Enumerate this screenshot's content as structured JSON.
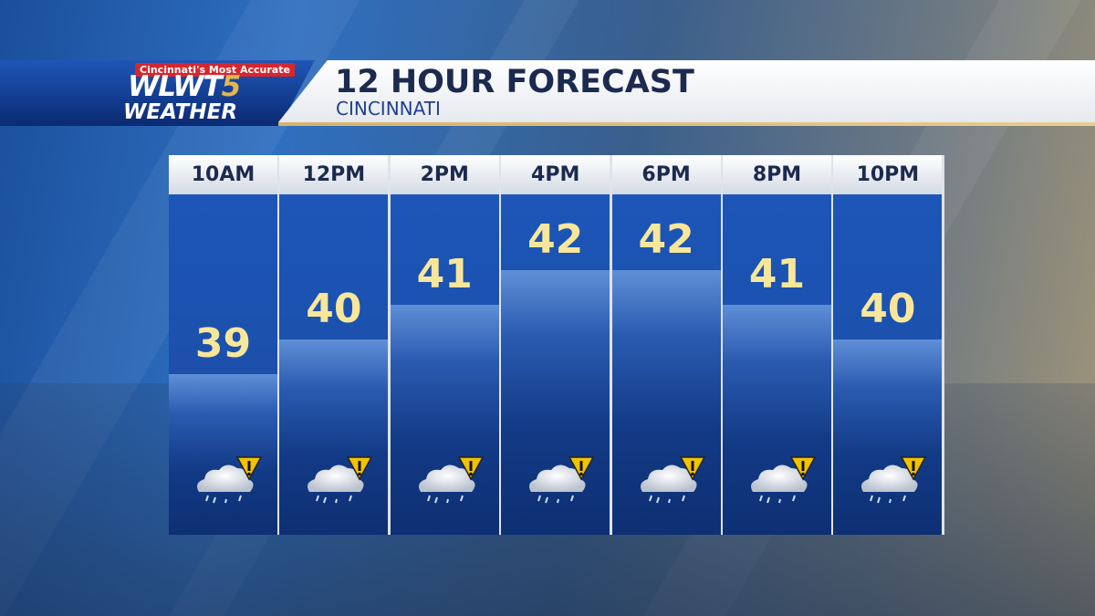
{
  "brand": {
    "tagline": "Cincinnati's Most Accurate",
    "station": "WLWT",
    "channel": "5",
    "product": "WEATHER"
  },
  "header": {
    "title": "12 HOUR FORECAST",
    "location": "CINCINNATI"
  },
  "colors": {
    "value_text": "#f8e79a",
    "bar_blue": "#1a4aa0",
    "warning_yellow": "#f2c200",
    "logo_red": "#d8262d"
  },
  "chart_data": {
    "type": "bar",
    "categories": [
      "10AM",
      "12PM",
      "2PM",
      "4PM",
      "6PM",
      "8PM",
      "10PM"
    ],
    "values": [
      39,
      40,
      41,
      42,
      42,
      41,
      40
    ],
    "conditions": [
      "rain-warning",
      "rain-warning",
      "rain-warning",
      "rain-warning",
      "rain-warning",
      "rain-warning",
      "rain-warning"
    ],
    "icon": "cloud-rain-warning-icon",
    "value_labels": [
      "39",
      "40",
      "41",
      "42",
      "42",
      "41",
      "40"
    ]
  }
}
